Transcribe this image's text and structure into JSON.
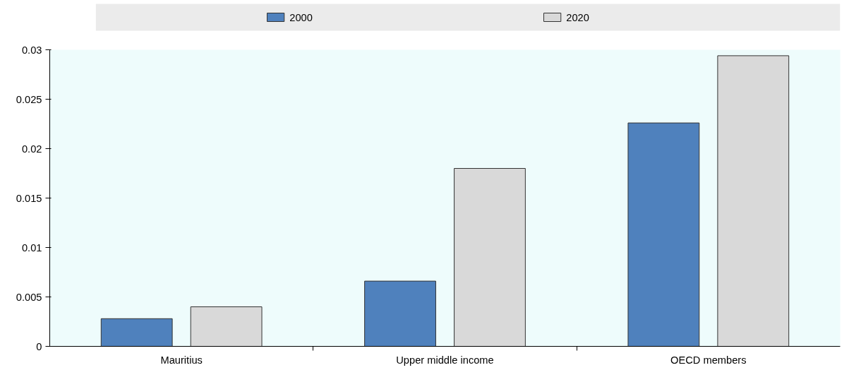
{
  "chart_data": {
    "type": "bar",
    "categories": [
      "Mauritius",
      "Upper middle income",
      "OECD members"
    ],
    "series": [
      {
        "name": "2000",
        "color": "#4f81bd",
        "values": [
          0.0028,
          0.0066,
          0.0226
        ]
      },
      {
        "name": "2020",
        "color": "#d9d9d9",
        "values": [
          0.004,
          0.018,
          0.0294
        ]
      }
    ],
    "ylim": [
      0,
      0.03
    ],
    "yticks": [
      0,
      0.005,
      0.01,
      0.015,
      0.02,
      0.025,
      0.03
    ],
    "grid": false,
    "legend": "top"
  }
}
